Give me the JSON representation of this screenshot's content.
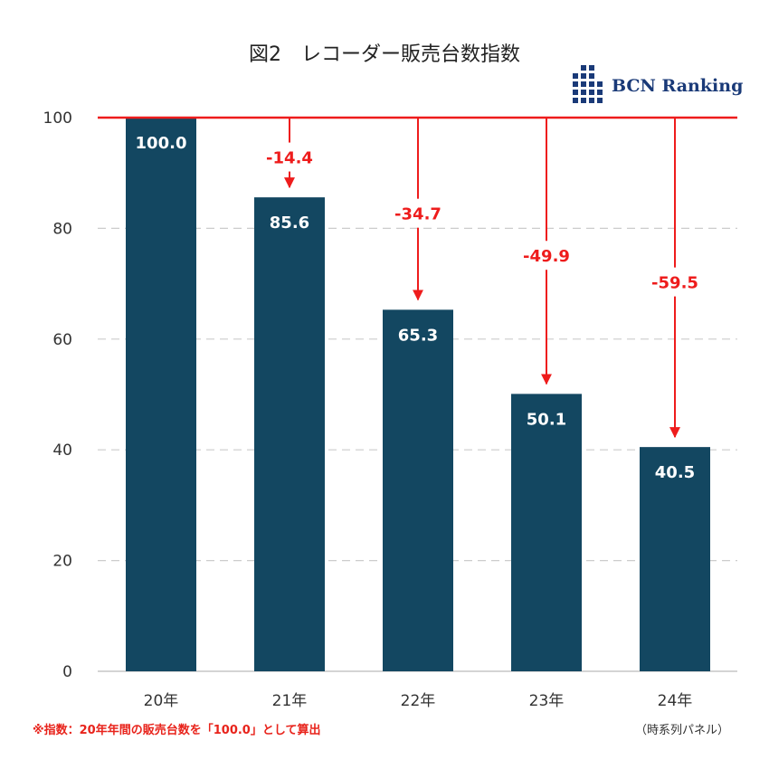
{
  "title": "図2　レコーダー販売台数指数",
  "logo": {
    "text": "BCN Ranking",
    "icon": "bcn-bar-grid-icon"
  },
  "footnote": "※指数：20年年間の販売台数を「100.0」として算出",
  "source": "（時系列パネル）",
  "colors": {
    "bar": "#134761",
    "accent": "#ee1c1c",
    "grid": "#cccccc",
    "logo": "#1a3a78"
  },
  "chart_data": {
    "type": "bar",
    "categories": [
      "20年",
      "21年",
      "22年",
      "23年",
      "24年"
    ],
    "values": [
      100.0,
      85.6,
      65.3,
      50.1,
      40.5
    ],
    "value_labels": [
      "100.0",
      "85.6",
      "65.3",
      "50.1",
      "40.5"
    ],
    "changes": [
      null,
      "-14.4",
      "-34.7",
      "-49.9",
      "-59.5"
    ],
    "reference_line": 100,
    "ylim": [
      0,
      100
    ],
    "yticks": [
      0,
      20,
      40,
      60,
      80,
      100
    ],
    "grid": true,
    "grid_style": "dashed"
  }
}
